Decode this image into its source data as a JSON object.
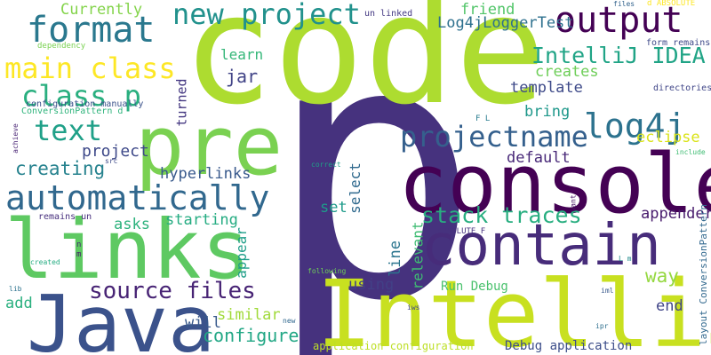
{
  "cloud": {
    "background": "#ffffff",
    "words": [
      {
        "text": "p",
        "color": "#46327e"
      },
      {
        "text": "code",
        "color": "#addc30"
      },
      {
        "text": "console",
        "color": "#440154"
      },
      {
        "text": "IntelliJ",
        "color": "#c8e020"
      },
      {
        "text": "links",
        "color": "#5ec962"
      },
      {
        "text": "Java",
        "color": "#3b528b"
      },
      {
        "text": "contain",
        "color": "#472c7a"
      },
      {
        "text": "pre",
        "color": "#7ad151"
      },
      {
        "text": "automatically",
        "color": "#31688e"
      },
      {
        "text": "output",
        "color": "#440154"
      },
      {
        "text": "format",
        "color": "#2a788e"
      },
      {
        "text": "new project",
        "color": "#21918c"
      },
      {
        "text": "main class",
        "color": "#fde725"
      },
      {
        "text": "projectname",
        "color": "#35608d"
      },
      {
        "text": "log4j",
        "color": "#2c728e"
      },
      {
        "text": "IntelliJ IDEA",
        "color": "#20a486"
      },
      {
        "text": "text",
        "color": "#1fa088"
      },
      {
        "text": "class p",
        "color": "#29af7f"
      },
      {
        "text": "stack traces",
        "color": "#28ae80"
      },
      {
        "text": "source files",
        "color": "#482475"
      },
      {
        "text": "creating",
        "color": "#26828e"
      },
      {
        "text": "project",
        "color": "#3e4989"
      },
      {
        "text": "Currently",
        "color": "#84d44b"
      },
      {
        "text": "friend",
        "color": "#52c569"
      },
      {
        "text": "Log4jLoggerTest",
        "color": "#2d708e"
      },
      {
        "text": "learn",
        "color": "#35b779"
      },
      {
        "text": "jar",
        "color": "#414487"
      },
      {
        "text": "creates",
        "color": "#6ece58"
      },
      {
        "text": "template",
        "color": "#3e4a89"
      },
      {
        "text": "bring",
        "color": "#1f988b"
      },
      {
        "text": "eclipse",
        "color": "#dae319"
      },
      {
        "text": "default",
        "color": "#482878"
      },
      {
        "text": "hyperlinks",
        "color": "#38598c"
      },
      {
        "text": "starting",
        "color": "#25ac82"
      },
      {
        "text": "asks",
        "color": "#2db27d"
      },
      {
        "text": "set",
        "color": "#1e9b8a"
      },
      {
        "text": "select",
        "color": "#306a8e"
      },
      {
        "text": "line",
        "color": "#2b758e"
      },
      {
        "text": "relevant",
        "color": "#3fbc73"
      },
      {
        "text": "appender",
        "color": "#481b6d"
      },
      {
        "text": "way",
        "color": "#95d840"
      },
      {
        "text": "configure",
        "color": "#22a785"
      },
      {
        "text": "using",
        "color": "#424086"
      },
      {
        "text": "will",
        "color": "#38598c"
      },
      {
        "text": "similar",
        "color": "#a0da39"
      },
      {
        "text": "add",
        "color": "#2ab07f"
      },
      {
        "text": "end",
        "color": "#404588"
      },
      {
        "text": "appear",
        "color": "#1f9e89"
      },
      {
        "text": "turned",
        "color": "#453882"
      },
      {
        "text": "Run Debug",
        "color": "#4ac16d"
      },
      {
        "text": "Debug application",
        "color": "#3d4e8a"
      },
      {
        "text": "application configuration",
        "color": "#bddf26"
      },
      {
        "text": "layout ConversionPattern",
        "color": "#31688e"
      },
      {
        "text": "un linked",
        "color": "#443983"
      },
      {
        "text": "dependency",
        "color": "#7ad151"
      },
      {
        "text": "configuration manually",
        "color": "#3b528b"
      },
      {
        "text": "ConversionPattern d",
        "color": "#2fb47c"
      },
      {
        "text": "form remains",
        "color": "#3e4989"
      },
      {
        "text": "directories",
        "color": "#404688"
      },
      {
        "text": "achieve",
        "color": "#482374"
      },
      {
        "text": "src",
        "color": "#3e4a89"
      },
      {
        "text": "remains un",
        "color": "#472f7d"
      },
      {
        "text": "created",
        "color": "#25ac82"
      },
      {
        "text": "lib",
        "color": "#2c728e"
      },
      {
        "text": "m",
        "color": "#48186a"
      },
      {
        "text": "n",
        "color": "#482173"
      },
      {
        "text": "files",
        "color": "#33638d"
      },
      {
        "text": "d ABSOLUTE",
        "color": "#fde725"
      },
      {
        "text": "F L",
        "color": "#287c8e"
      },
      {
        "text": "correct",
        "color": "#1fa088"
      },
      {
        "text": "include",
        "color": "#3fbc73"
      },
      {
        "text": "want",
        "color": "#471365"
      },
      {
        "text": "ABSOLUTE F",
        "color": "#46327e"
      },
      {
        "text": "L m",
        "color": "#228b8d"
      },
      {
        "text": "following",
        "color": "#6ece58"
      },
      {
        "text": "new",
        "color": "#31688e"
      },
      {
        "text": "iws",
        "color": "#3f4788"
      },
      {
        "text": "iml",
        "color": "#38598c"
      },
      {
        "text": "ipr",
        "color": "#2e6f8e"
      }
    ]
  }
}
